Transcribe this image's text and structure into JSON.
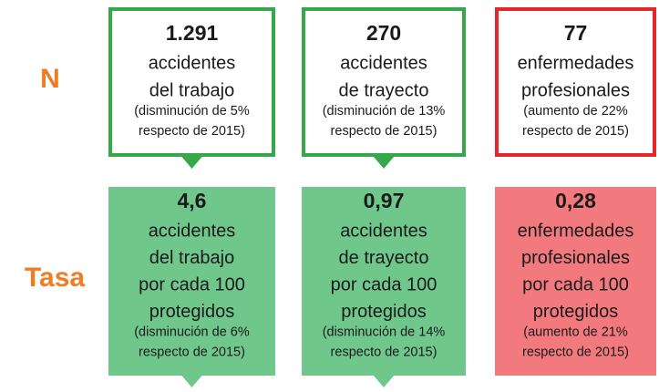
{
  "rows": [
    {
      "label": "N",
      "cards": [
        {
          "value": "1.291",
          "lines": [
            "accidentes",
            "del trabajo"
          ],
          "notes": [
            "(disminución de 5%",
            "respecto de 2015)"
          ],
          "color": "#37a84a",
          "style": "outline",
          "pointer": true
        },
        {
          "value": "270",
          "lines": [
            "accidentes",
            "de trayecto"
          ],
          "notes": [
            "(disminución de 13%",
            "respecto de 2015)"
          ],
          "color": "#37a84a",
          "style": "outline",
          "pointer": true
        },
        {
          "value": "77",
          "lines": [
            "enfermedades",
            "profesionales"
          ],
          "notes": [
            "(aumento de 22%",
            "respecto de 2015)"
          ],
          "color": "#e5262b",
          "style": "outline",
          "pointer": false
        }
      ]
    },
    {
      "label": "Tasa",
      "cards": [
        {
          "value": "4,6",
          "lines": [
            "accidentes",
            "del trabajo",
            "por cada 100",
            "protegidos"
          ],
          "notes": [
            "(disminución de 6%",
            "respecto de 2015)"
          ],
          "color": "#6fc78c",
          "style": "filled",
          "pointer": true
        },
        {
          "value": "0,97",
          "lines": [
            "accidentes",
            "de trayecto",
            "por cada 100",
            "protegidos"
          ],
          "notes": [
            "(disminución de 14%",
            "respecto de 2015)"
          ],
          "color": "#6fc78c",
          "style": "filled",
          "pointer": true
        },
        {
          "value": "0,28",
          "lines": [
            "enfermedades",
            "profesionales",
            "por cada 100",
            "protegidos"
          ],
          "notes": [
            "(aumento de 21%",
            "respecto de 2015)"
          ],
          "color": "#f27a7e",
          "style": "filled",
          "pointer": false
        }
      ]
    }
  ]
}
